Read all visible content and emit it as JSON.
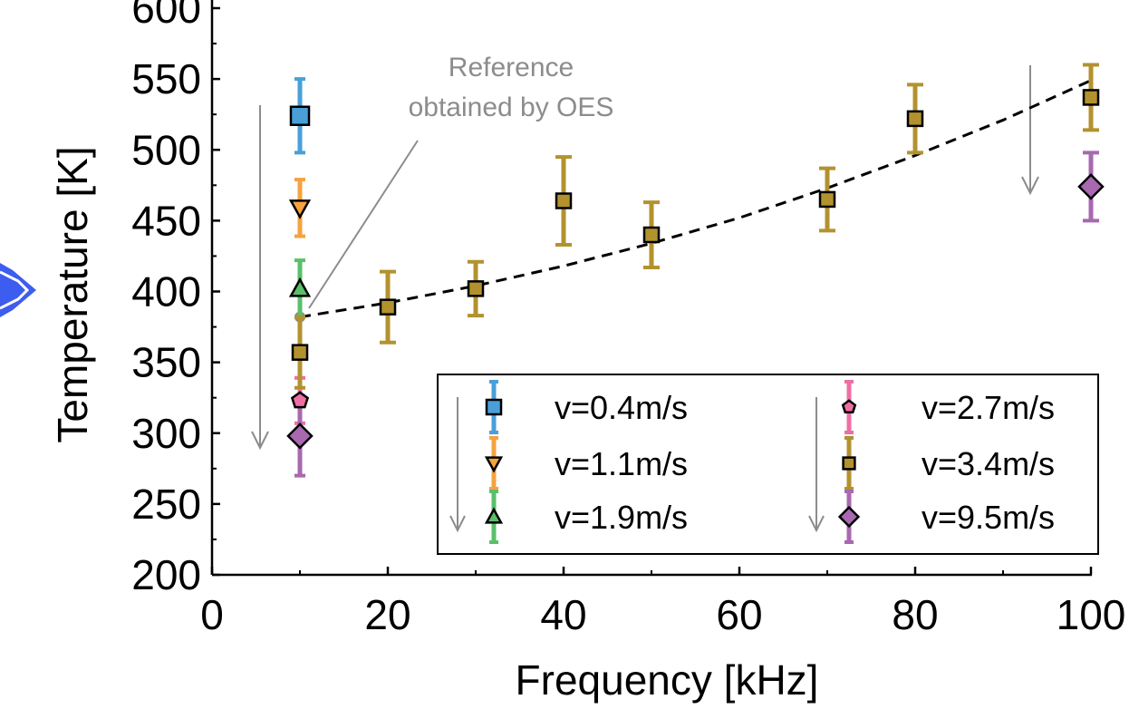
{
  "chart_data": {
    "type": "scatter",
    "xlabel": "Frequency [kHz]",
    "ylabel": "Temperature [K]",
    "xlim": [
      0,
      105
    ],
    "ylim": [
      200,
      600
    ],
    "x_ticks": [
      0,
      20,
      40,
      60,
      80,
      100
    ],
    "y_ticks": [
      200,
      250,
      300,
      350,
      400,
      450,
      500,
      550,
      600
    ],
    "grid": false,
    "legend_position": "bottom-right",
    "series": [
      {
        "name": "v=0.4m/s",
        "marker": "square",
        "color": "#4a9fd8",
        "x": [
          10
        ],
        "y": [
          524
        ],
        "err": [
          26
        ]
      },
      {
        "name": "v=1.1m/s",
        "marker": "triangle-down",
        "color": "#f5a340",
        "x": [
          10
        ],
        "y": [
          459
        ],
        "err": [
          20
        ]
      },
      {
        "name": "v=1.9m/s",
        "marker": "triangle-up",
        "color": "#5bbf6a",
        "x": [
          10
        ],
        "y": [
          402
        ],
        "err": [
          20
        ]
      },
      {
        "name": "v=2.7m/s",
        "marker": "pentagon",
        "color": "#ee6fa4",
        "x": [
          10
        ],
        "y": [
          323
        ],
        "err": [
          16
        ]
      },
      {
        "name": "v=3.4m/s",
        "marker": "square-small",
        "color": "#b3922e",
        "x": [
          10,
          20,
          30,
          40,
          50,
          70,
          80,
          100
        ],
        "y": [
          357,
          389,
          402,
          464,
          440,
          465,
          522,
          537
        ],
        "err": [
          25,
          25,
          19,
          31,
          23,
          22,
          24,
          23
        ]
      },
      {
        "name": "v=9.5m/s",
        "marker": "diamond",
        "color": "#a869b0",
        "x": [
          10,
          100
        ],
        "y": [
          298,
          474
        ],
        "err": [
          28,
          24
        ]
      }
    ],
    "fit_line": {
      "style": "dashed",
      "x": [
        10,
        20,
        30,
        40,
        50,
        60,
        70,
        80,
        90,
        100
      ],
      "y": [
        382,
        392,
        404,
        418,
        434,
        452,
        473,
        496,
        521,
        549
      ]
    },
    "reference_point": {
      "x": 10,
      "y": 382
    },
    "annotation": {
      "line1": "Reference",
      "line2": "obtained by OES"
    }
  }
}
